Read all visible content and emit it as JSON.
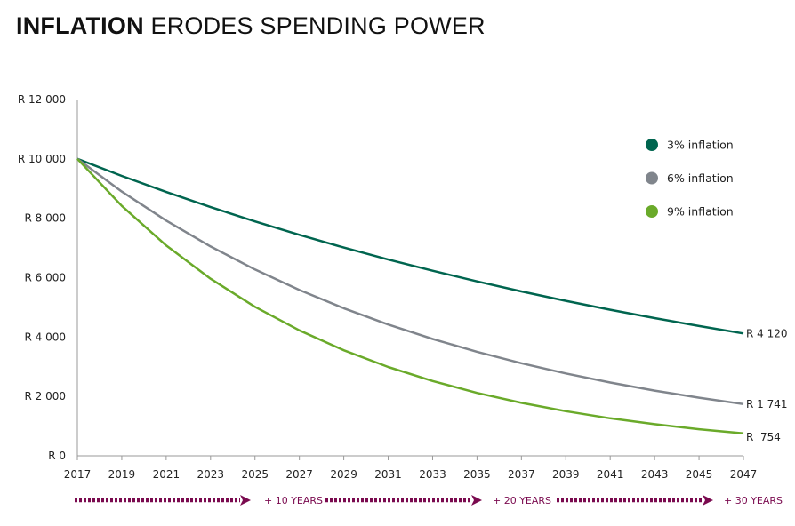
{
  "title_bold": "INFLATION",
  "title_rest": "ERODES SPENDING POWER",
  "chart_data": {
    "type": "line",
    "title": "INFLATION ERODES SPENDING POWER",
    "x": [
      2017,
      2019,
      2021,
      2023,
      2025,
      2027,
      2029,
      2031,
      2033,
      2035,
      2037,
      2039,
      2041,
      2043,
      2045,
      2047
    ],
    "xticks": [
      "2017",
      "2019",
      "2021",
      "2023",
      "2025",
      "2027",
      "2029",
      "2031",
      "2033",
      "2035",
      "2037",
      "2039",
      "2041",
      "2043",
      "2045",
      "2047"
    ],
    "ylim": [
      0,
      12000
    ],
    "yticks": [
      {
        "v": 0,
        "label": "R 0"
      },
      {
        "v": 2000,
        "label": "R 2 000"
      },
      {
        "v": 4000,
        "label": "R 4 000"
      },
      {
        "v": 6000,
        "label": "R 6 000"
      },
      {
        "v": 8000,
        "label": "R 8 000"
      },
      {
        "v": 10000,
        "label": "R 10 000"
      },
      {
        "v": 12000,
        "label": "R 12 000"
      }
    ],
    "grid": false,
    "legend_position": "top-right",
    "series": [
      {
        "name": "3% inflation",
        "color": "#00654f",
        "end_label": "R 4 120",
        "values": [
          10000,
          9426,
          8885,
          8375,
          7894,
          7441,
          7014,
          6611,
          6232,
          5874,
          5537,
          5219,
          4919,
          4637,
          4371,
          4120
        ]
      },
      {
        "name": "6% inflation",
        "color": "#80858c",
        "end_label": "R 1 741",
        "values": [
          10000,
          8900,
          7921,
          7050,
          6274,
          5584,
          4970,
          4423,
          3936,
          3503,
          3118,
          2775,
          2470,
          2198,
          1956,
          1741
        ]
      },
      {
        "name": "9% inflation",
        "color": "#6aaa2a",
        "end_label": "R  754",
        "values": [
          10000,
          8417,
          7084,
          5963,
          5019,
          4224,
          3555,
          2992,
          2519,
          2120,
          1784,
          1502,
          1264,
          1064,
          895,
          754
        ]
      }
    ],
    "annotations": [
      "+ 10 YEARS",
      "+ 20 YEARS",
      "+ 30 YEARS"
    ],
    "annotation_color": "#7a0a4f"
  }
}
